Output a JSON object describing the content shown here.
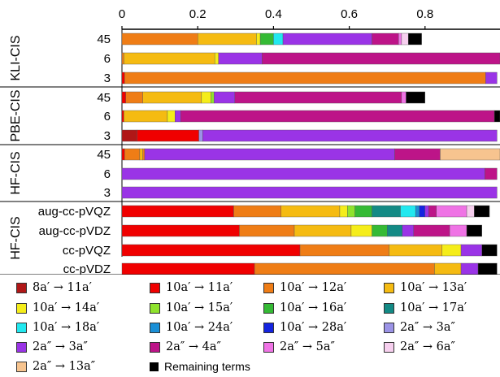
{
  "chart_data": {
    "type": "bar",
    "orientation": "horizontal",
    "stacked": true,
    "x_ticks": [
      "0",
      "0.2",
      "0.4",
      "0.6",
      "0.8"
    ],
    "xlim": [
      0,
      1
    ],
    "grid": false,
    "legend_position": "bottom",
    "groups": [
      {
        "label": "KLI-CIS",
        "rows": [
          {
            "label": "45",
            "segments": [
              {
                "component": "10a'→12a'",
                "value": 0.2
              },
              {
                "component": "10a'→13a'",
                "value": 0.155
              },
              {
                "component": "10a'→14a'",
                "value": 0.01
              },
              {
                "component": "10a'→16a'",
                "value": 0.035
              },
              {
                "component": "10a'→18a'",
                "value": 0.025
              },
              {
                "component": "2a''→3a''",
                "value": 0.235
              },
              {
                "component": "2a''→4a''",
                "value": 0.07
              },
              {
                "component": "2a''→5a''",
                "value": 0.008
              },
              {
                "component": "2a''→6a''",
                "value": 0.018
              },
              {
                "component": "Remaining terms",
                "value": 0.035
              }
            ]
          },
          {
            "label": "6",
            "segments": [
              {
                "component": "10a'→12a'",
                "value": 0.005
              },
              {
                "component": "10a'→13a'",
                "value": 0.24
              },
              {
                "component": "10a'→14a'",
                "value": 0.01
              },
              {
                "component": "2a''→3a''",
                "value": 0.115
              },
              {
                "component": "2a''→4a''",
                "value": 0.63
              }
            ]
          },
          {
            "label": "3",
            "segments": [
              {
                "component": "10a'→11a'",
                "value": 0.007
              },
              {
                "component": "10a'→12a'",
                "value": 0.953
              },
              {
                "component": "2a''→3a''",
                "value": 0.03
              }
            ]
          }
        ]
      },
      {
        "label": "PBE-CIS",
        "rows": [
          {
            "label": "45",
            "segments": [
              {
                "component": "10a'→11a'",
                "value": 0.01
              },
              {
                "component": "10a'→12a'",
                "value": 0.045
              },
              {
                "component": "10a'→13a'",
                "value": 0.155
              },
              {
                "component": "10a'→14a'",
                "value": 0.025
              },
              {
                "component": "10a'→15a'",
                "value": 0.008
              },
              {
                "component": "2a''→3a''",
                "value": 0.055
              },
              {
                "component": "2a''→4a''",
                "value": 0.44
              },
              {
                "component": "2a''→5a''",
                "value": 0.012
              },
              {
                "component": "Remaining terms",
                "value": 0.05
              }
            ]
          },
          {
            "label": "6",
            "segments": [
              {
                "component": "10a'→11a'",
                "value": 0.005
              },
              {
                "component": "10a'→13a'",
                "value": 0.115
              },
              {
                "component": "10a'→14a'",
                "value": 0.02
              },
              {
                "component": "2a''→3a''",
                "value": 0.015
              },
              {
                "component": "2a''→4a''",
                "value": 0.828
              },
              {
                "component": "Remaining terms",
                "value": 0.017
              }
            ]
          },
          {
            "label": "3",
            "segments": [
              {
                "component": "8a'→11a'",
                "value": 0.04
              },
              {
                "component": "10a'→11a'",
                "value": 0.163
              },
              {
                "component": "2a'→3a''",
                "value": 0.01
              },
              {
                "component": "2a''→3a''",
                "value": 0.777
              }
            ]
          }
        ]
      },
      {
        "label": "HF-CIS",
        "rows": [
          {
            "label": "45",
            "segments": [
              {
                "component": "10a'→11a'",
                "value": 0.007
              },
              {
                "component": "10a'→12a'",
                "value": 0.04
              },
              {
                "component": "10a'→13a'",
                "value": 0.008
              },
              {
                "component": "10a'→12a'",
                "value": 0.005
              },
              {
                "component": "2a''→3a''",
                "value": 0.66
              },
              {
                "component": "2a''→4a''",
                "value": 0.12
              },
              {
                "component": "2a''→13a''",
                "value": 0.16
              }
            ]
          },
          {
            "label": "6",
            "segments": [
              {
                "component": "2a''→3a''",
                "value": 0.958
              },
              {
                "component": "2a''→4a''",
                "value": 0.032
              }
            ]
          },
          {
            "label": "3",
            "segments": [
              {
                "component": "2a''→3a''",
                "value": 0.99
              }
            ]
          }
        ]
      },
      {
        "label": "HF-CIS",
        "rows": [
          {
            "label": "aug-cc-pVQZ",
            "segments": [
              {
                "component": "10a'→11a'",
                "value": 0.295
              },
              {
                "component": "10a'→12a'",
                "value": 0.125
              },
              {
                "component": "10a'→13a'",
                "value": 0.155
              },
              {
                "component": "10a'→14a'",
                "value": 0.02
              },
              {
                "component": "10a'→15a'",
                "value": 0.02
              },
              {
                "component": "10a'→16a'",
                "value": 0.045
              },
              {
                "component": "10a'→17a'",
                "value": 0.075
              },
              {
                "component": "10a'→18a'",
                "value": 0.04
              },
              {
                "component": "10a'→24a'",
                "value": 0.01
              },
              {
                "component": "10a'→28a'",
                "value": 0.015
              },
              {
                "component": "2a''→3a''",
                "value": 0.01
              },
              {
                "component": "2a''→4a''",
                "value": 0.02
              },
              {
                "component": "2a''→5a''",
                "value": 0.08
              },
              {
                "component": "2a''→6a''",
                "value": 0.02
              },
              {
                "component": "Remaining terms",
                "value": 0.04
              }
            ]
          },
          {
            "label": "aug-cc-pVDZ",
            "segments": [
              {
                "component": "10a'→11a'",
                "value": 0.31
              },
              {
                "component": "10a'→12a'",
                "value": 0.145
              },
              {
                "component": "10a'→13a'",
                "value": 0.15
              },
              {
                "component": "10a'→14a'",
                "value": 0.055
              },
              {
                "component": "10a'→16a'",
                "value": 0.04
              },
              {
                "component": "10a'→17a'",
                "value": 0.04
              },
              {
                "component": "2a''→3a''",
                "value": 0.03
              },
              {
                "component": "2a''→4a''",
                "value": 0.095
              },
              {
                "component": "2a''→5a''",
                "value": 0.045
              },
              {
                "component": "Remaining terms",
                "value": 0.04
              }
            ]
          },
          {
            "label": "cc-pVQZ",
            "segments": [
              {
                "component": "10a'→11a'",
                "value": 0.47
              },
              {
                "component": "10a'→12a'",
                "value": 0.235
              },
              {
                "component": "10a'→13a'",
                "value": 0.14
              },
              {
                "component": "10a'→14a'",
                "value": 0.05
              },
              {
                "component": "2a''→3a''",
                "value": 0.055
              },
              {
                "component": "Remaining terms",
                "value": 0.04
              }
            ]
          },
          {
            "label": "cc-pVDZ",
            "segments": [
              {
                "component": "10a'→11a'",
                "value": 0.35
              },
              {
                "component": "10a'→12a'",
                "value": 0.475
              },
              {
                "component": "10a'→13a'",
                "value": 0.07
              },
              {
                "component": "2a''→3a''",
                "value": 0.045
              },
              {
                "component": "Remaining terms",
                "value": 0.05
              }
            ]
          }
        ]
      }
    ],
    "legend": [
      {
        "key": "8a'→11a'",
        "label": "8a′ → 11a′",
        "color": "#b01717"
      },
      {
        "key": "10a'→11a'",
        "label": "10a′ → 11a′",
        "color": "#f00000"
      },
      {
        "key": "10a'→12a'",
        "label": "10a′ → 12a′",
        "color": "#ef7d16"
      },
      {
        "key": "10a'→13a'",
        "label": "10a′ → 13a′",
        "color": "#f5bb12"
      },
      {
        "key": "10a'→14a'",
        "label": "10a′ → 14a′",
        "color": "#f5ed1a"
      },
      {
        "key": "10a'→15a'",
        "label": "10a′ → 15a′",
        "color": "#8fe32d"
      },
      {
        "key": "10a'→16a'",
        "label": "10a′ → 16a′",
        "color": "#35ba35"
      },
      {
        "key": "10a'→17a'",
        "label": "10a′ → 17a′",
        "color": "#138a85"
      },
      {
        "key": "10a'→18a'",
        "label": "10a′ → 18a′",
        "color": "#22e8ef"
      },
      {
        "key": "10a'→24a'",
        "label": "10a′ → 24a′",
        "color": "#1a8fd6"
      },
      {
        "key": "10a'→28a'",
        "label": "10a′ → 28a′",
        "color": "#1424e0"
      },
      {
        "key": "2a'→3a''",
        "label": "2a″ → 3a″",
        "color": "#9b93e6"
      },
      {
        "key": "2a''→3a''",
        "label": "2a″ → 3a″",
        "color": "#9a34e6"
      },
      {
        "key": "2a''→4a''",
        "label": "2a″ → 4a″",
        "color": "#bd1488"
      },
      {
        "key": "2a''→5a''",
        "label": "2a″ → 5a″",
        "color": "#ef73e5"
      },
      {
        "key": "2a''→6a''",
        "label": "2a″ → 6a″",
        "color": "#f6cfee"
      },
      {
        "key": "2a''→13a''",
        "label": "2a″ → 13a″",
        "color": "#f7c48f"
      },
      {
        "key": "Remaining terms",
        "label": "Remaining terms",
        "color": "#000000"
      }
    ]
  }
}
